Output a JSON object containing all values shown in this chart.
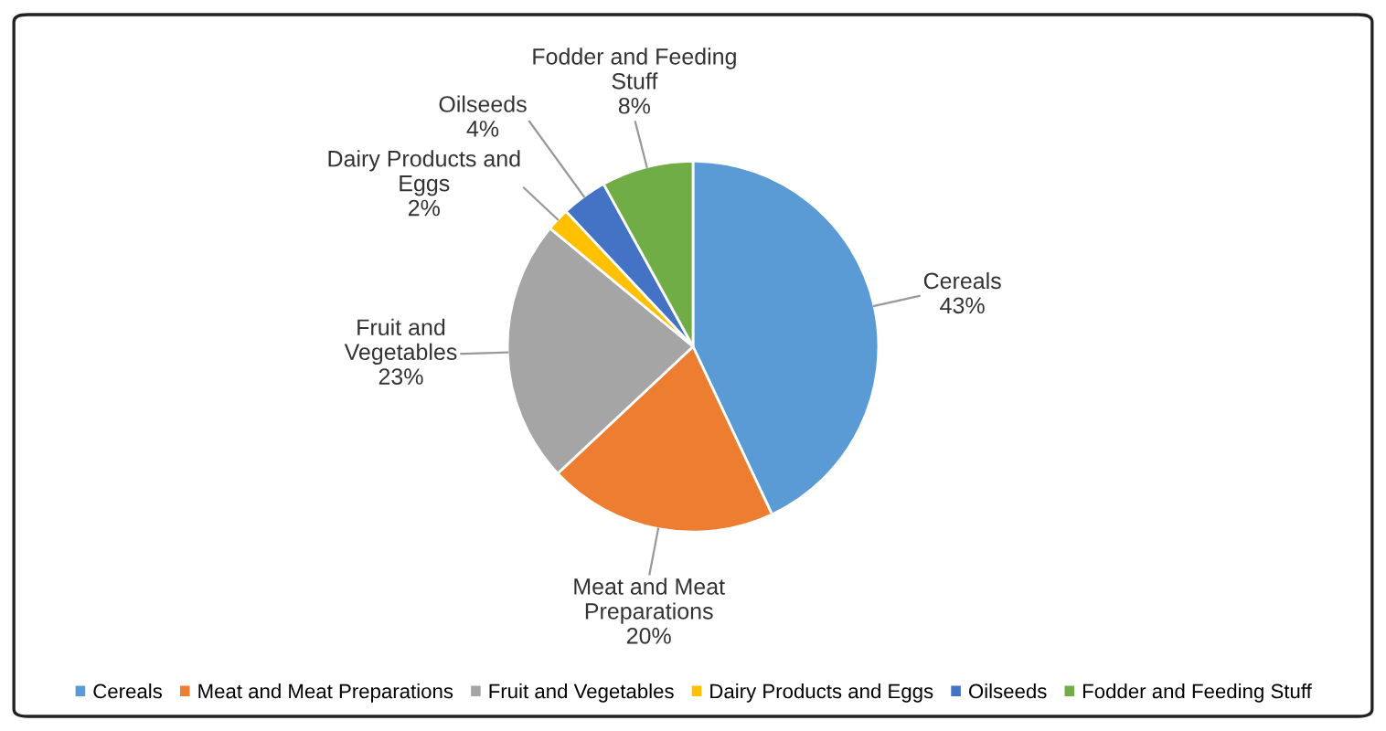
{
  "chart_data": {
    "type": "pie",
    "categories": [
      "Cereals",
      "Meat and Meat Preparations",
      "Fruit and Vegetables",
      "Dairy Products and Eggs",
      "Oilseeds",
      "Fodder and Feeding Stuff"
    ],
    "values": [
      43,
      20,
      23,
      2,
      4,
      8
    ],
    "value_labels": [
      "43%",
      "20%",
      "23%",
      "2%",
      "4%",
      "8%"
    ],
    "colors": [
      "#5b9bd5",
      "#ed7d31",
      "#a5a5a5",
      "#ffc000",
      "#4472c4",
      "#70ad47"
    ],
    "legend": "bottom"
  }
}
